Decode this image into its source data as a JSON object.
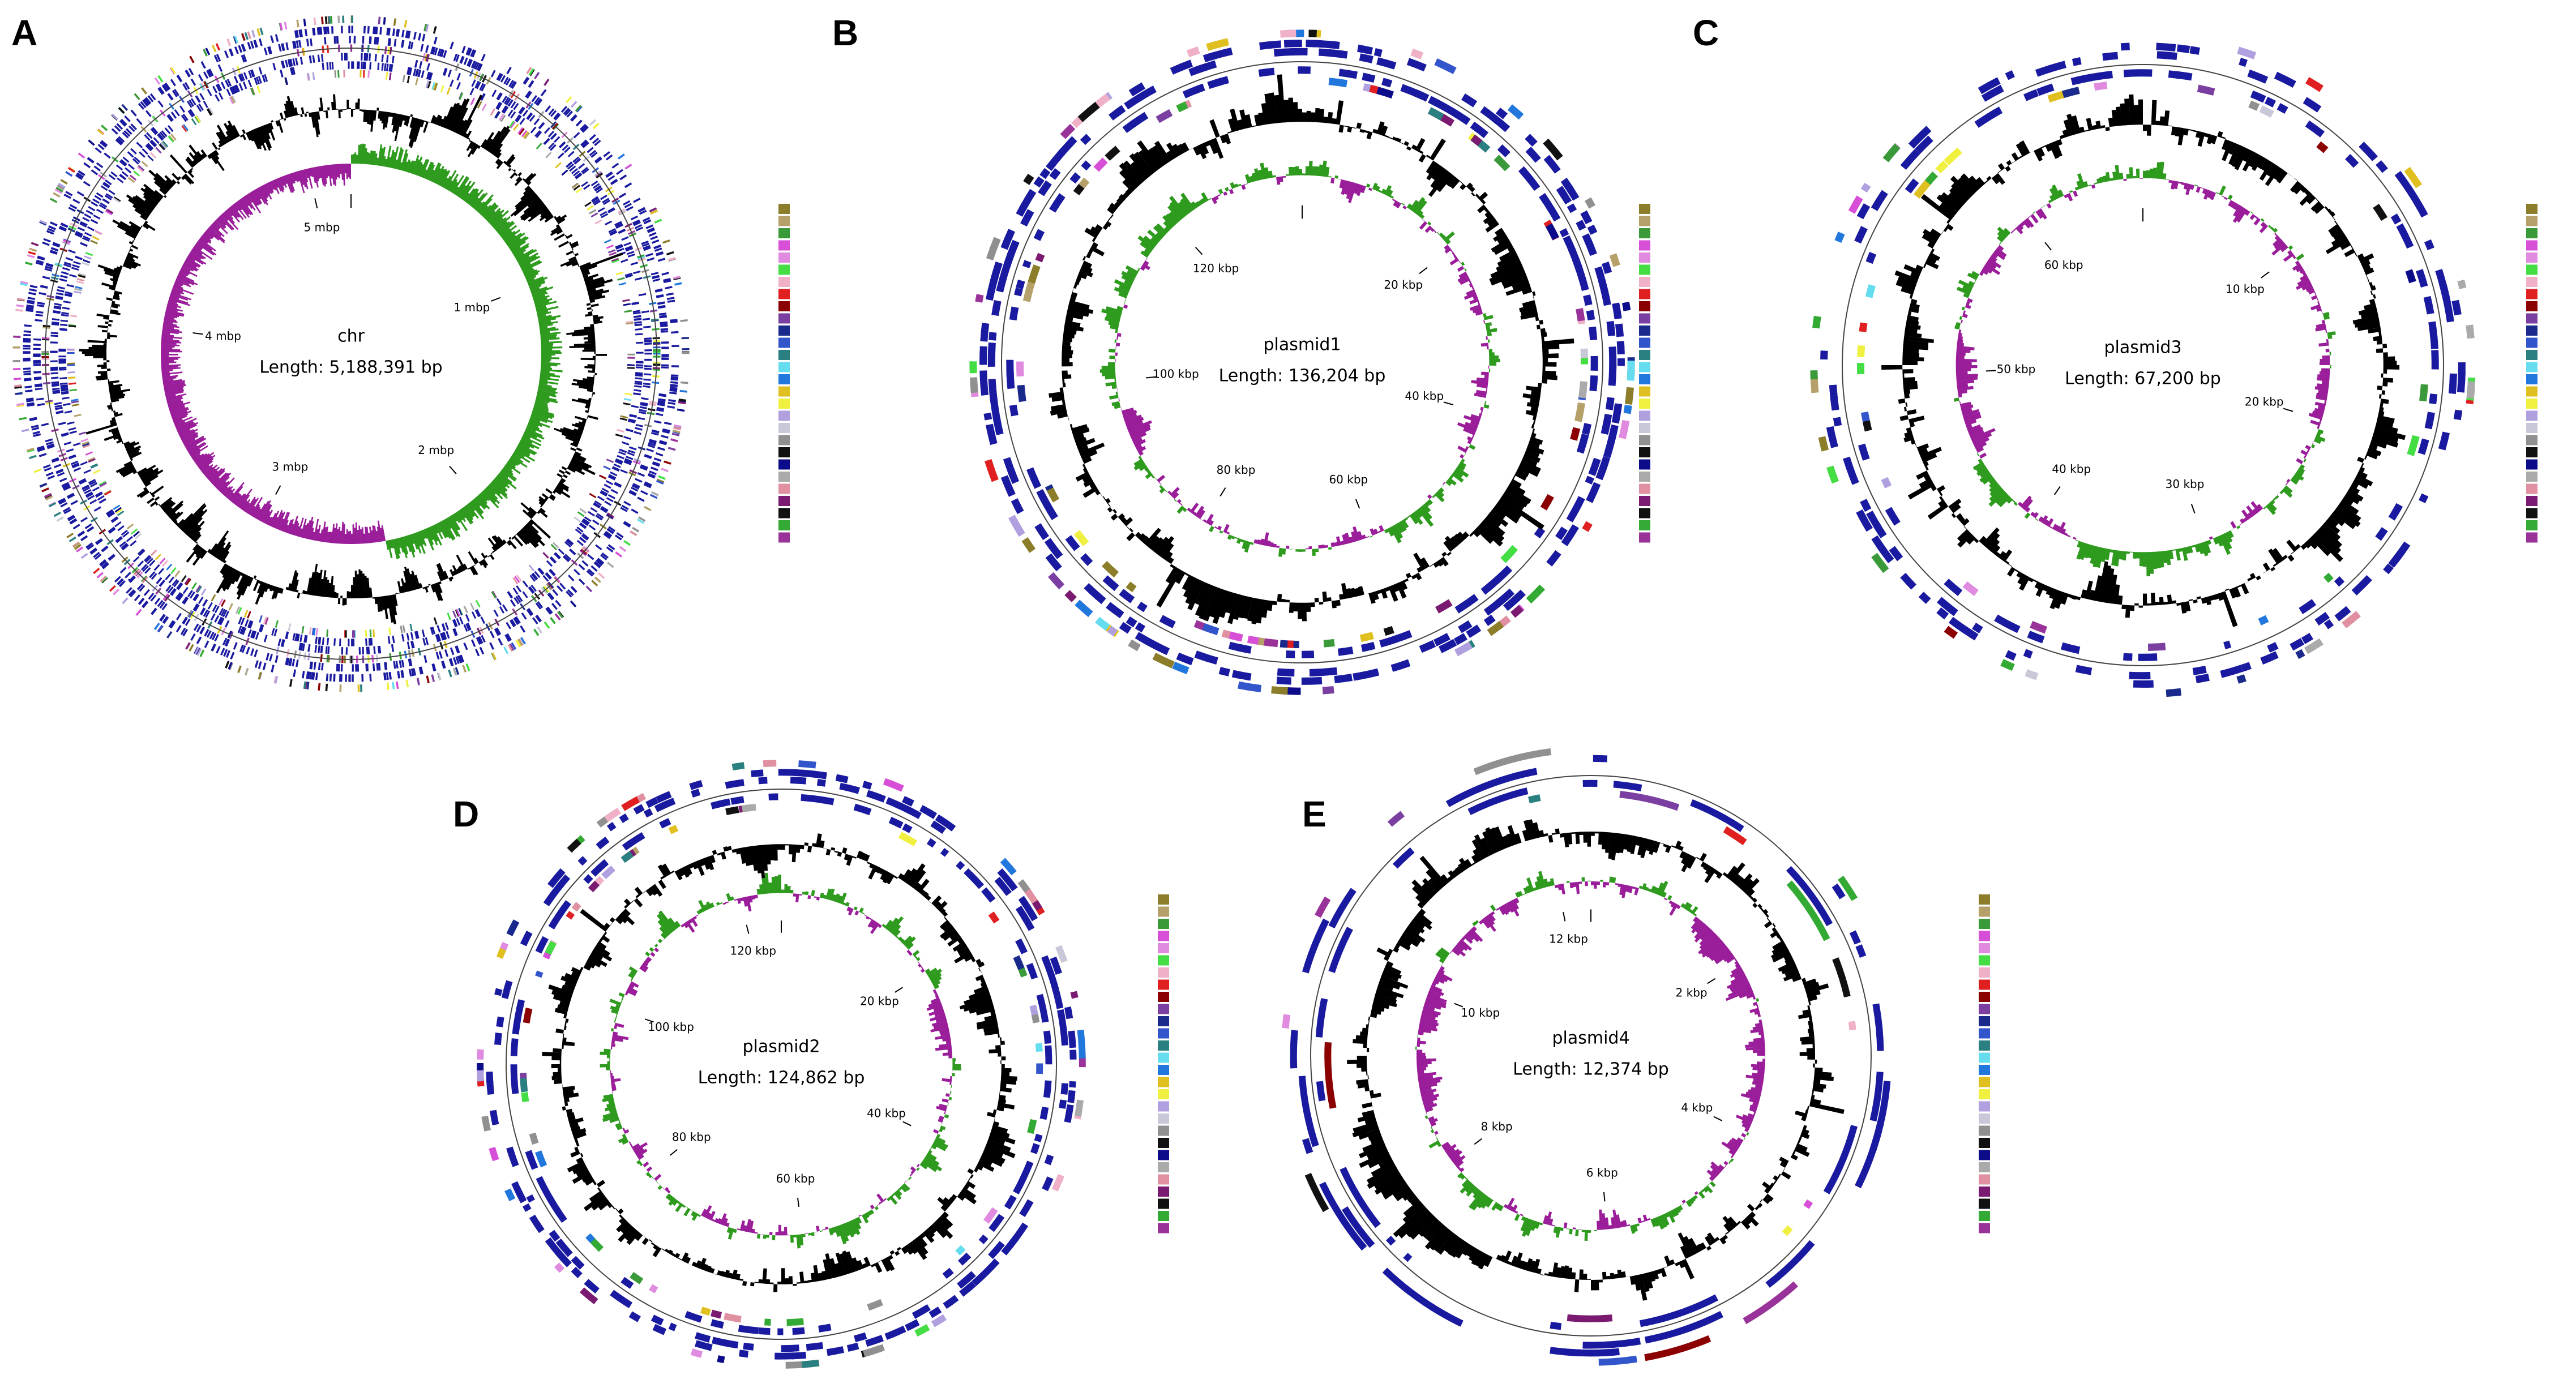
{
  "panels": [
    {
      "label": "A",
      "name": "chr",
      "length": {
        "value": 5188391,
        "label": "Length: 5,188,391 bp"
      },
      "ticks": [
        {
          "value": 1000000,
          "label": "1 mbp"
        },
        {
          "value": 2000000,
          "label": "2 mbp"
        },
        {
          "value": 3000000,
          "label": "3 mbp"
        },
        {
          "value": 4000000,
          "label": "4 mbp"
        },
        {
          "value": 5000000,
          "label": "5 mbp"
        }
      ]
    },
    {
      "label": "B",
      "name": "plasmid1",
      "length": {
        "value": 136204,
        "label": "Length: 136,204 bp"
      },
      "ticks": [
        {
          "value": 20000,
          "label": "20 kbp"
        },
        {
          "value": 40000,
          "label": "40 kbp"
        },
        {
          "value": 60000,
          "label": "60 kbp"
        },
        {
          "value": 80000,
          "label": "80 kbp"
        },
        {
          "value": 100000,
          "label": "100 kbp"
        },
        {
          "value": 120000,
          "label": "120 kbp"
        }
      ]
    },
    {
      "label": "C",
      "name": "plasmid3",
      "length": {
        "value": 67200,
        "label": "Length: 67,200 bp"
      },
      "ticks": [
        {
          "value": 10000,
          "label": "10 kbp"
        },
        {
          "value": 20000,
          "label": "20 kbp"
        },
        {
          "value": 30000,
          "label": "30 kbp"
        },
        {
          "value": 40000,
          "label": "40 kbp"
        },
        {
          "value": 50000,
          "label": "50 kbp"
        },
        {
          "value": 60000,
          "label": "60 kbp"
        }
      ]
    },
    {
      "label": "D",
      "name": "plasmid2",
      "length": {
        "value": 124862,
        "label": "Length: 124,862 bp"
      },
      "ticks": [
        {
          "value": 20000,
          "label": "20 kbp"
        },
        {
          "value": 40000,
          "label": "40 kbp"
        },
        {
          "value": 60000,
          "label": "60 kbp"
        },
        {
          "value": 80000,
          "label": "80 kbp"
        },
        {
          "value": 100000,
          "label": "100 kbp"
        },
        {
          "value": 120000,
          "label": "120 kbp"
        }
      ]
    },
    {
      "label": "E",
      "name": "plasmid4",
      "length": {
        "value": 12374,
        "label": "Length: 12,374 bp"
      },
      "ticks": [
        {
          "value": 2000,
          "label": "2 kbp"
        },
        {
          "value": 4000,
          "label": "4 kbp"
        },
        {
          "value": 6000,
          "label": "6 kbp"
        },
        {
          "value": 8000,
          "label": "8 kbp"
        },
        {
          "value": 10000,
          "label": "10 kbp"
        },
        {
          "value": 12000,
          "label": "12 kbp"
        }
      ]
    }
  ],
  "legend_colors": [
    "#8b7d2a",
    "#b5a06a",
    "#3a9a3a",
    "#d64fd6",
    "#e08ae0",
    "#44dd44",
    "#f0b0c8",
    "#e02020",
    "#8b0000",
    "#7a3fa0",
    "#1a2a8c",
    "#3355cc",
    "#2a8080",
    "#66ddee",
    "#2277dd",
    "#e0c020",
    "#f0f040",
    "#b0a0e0",
    "#c8c8d8",
    "#909090",
    "#111111",
    "#0c0c8a",
    "#aaaaaa",
    "#e090a0",
    "#7a1a70",
    "#111111",
    "#33aa33",
    "#993399"
  ]
}
